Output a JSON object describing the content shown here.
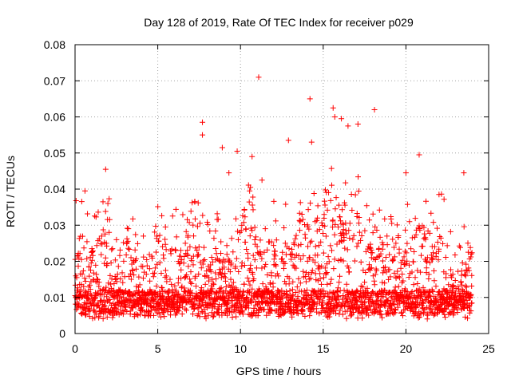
{
  "chart_data": {
    "type": "scatter",
    "title": "Day 128 of 2019, Rate Of TEC Index for receiver p029",
    "xlabel": "GPS time / hours",
    "ylabel": "ROTI / TECUs",
    "xlim": [
      0,
      25
    ],
    "ylim": [
      0,
      0.08
    ],
    "xticks": [
      0,
      5,
      10,
      15,
      20,
      25
    ],
    "yticks": [
      0,
      0.01,
      0.02,
      0.03,
      0.04,
      0.05,
      0.06,
      0.07,
      0.08
    ],
    "xtick_labels": [
      "0",
      "5",
      "10",
      "15",
      "20",
      "25"
    ],
    "ytick_labels": [
      "0",
      "0.01",
      "0.02",
      "0.03",
      "0.04",
      "0.05",
      "0.06",
      "0.07",
      "0.08"
    ],
    "grid": true,
    "marker": "+",
    "color": "#ff0000",
    "series": [
      {
        "name": "ROTI p029",
        "x_range": [
          0,
          24
        ],
        "typical_range": [
          0.004,
          0.03
        ],
        "notable_points": [
          {
            "x": 11.1,
            "y": 0.071
          },
          {
            "x": 14.2,
            "y": 0.065
          },
          {
            "x": 15.6,
            "y": 0.0625
          },
          {
            "x": 18.1,
            "y": 0.062
          },
          {
            "x": 15.7,
            "y": 0.06
          },
          {
            "x": 16.1,
            "y": 0.0595
          },
          {
            "x": 7.7,
            "y": 0.0585
          },
          {
            "x": 17.1,
            "y": 0.058
          },
          {
            "x": 16.5,
            "y": 0.0575
          },
          {
            "x": 7.7,
            "y": 0.055
          },
          {
            "x": 12.9,
            "y": 0.0535
          },
          {
            "x": 14.3,
            "y": 0.053
          },
          {
            "x": 8.9,
            "y": 0.0515
          },
          {
            "x": 9.8,
            "y": 0.0505
          },
          {
            "x": 20.8,
            "y": 0.0495
          },
          {
            "x": 10.7,
            "y": 0.049
          },
          {
            "x": 9.3,
            "y": 0.0445
          },
          {
            "x": 23.5,
            "y": 0.0445
          },
          {
            "x": 1.85,
            "y": 0.0455
          },
          {
            "x": 20.0,
            "y": 0.0445
          },
          {
            "x": 11.3,
            "y": 0.0425
          },
          {
            "x": 10.6,
            "y": 0.0405
          },
          {
            "x": 0.6,
            "y": 0.0395
          },
          {
            "x": 22.0,
            "y": 0.0385
          }
        ]
      }
    ]
  }
}
